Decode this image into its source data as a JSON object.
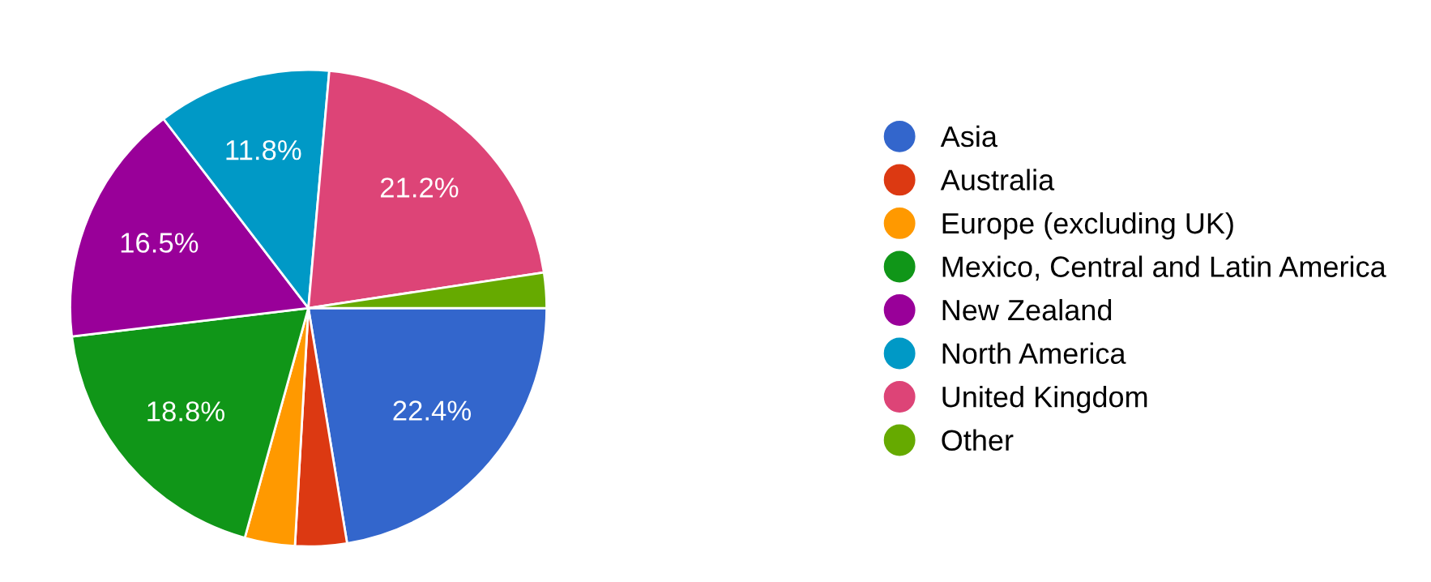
{
  "chart_data": {
    "type": "pie",
    "categories": [
      "Asia",
      "Australia",
      "Europe (excluding UK)",
      "Mexico, Central and Latin America",
      "New Zealand",
      "North America",
      "United Kingdom",
      "Other"
    ],
    "values": [
      22.4,
      3.5,
      3.4,
      18.8,
      16.5,
      11.8,
      21.2,
      2.4
    ],
    "value_labels": [
      "22.4%",
      null,
      null,
      "18.8%",
      "16.5%",
      "11.8%",
      "21.2%",
      null
    ],
    "colors": [
      "#3366cc",
      "#dc3912",
      "#ff9900",
      "#109618",
      "#990099",
      "#0099c6",
      "#dd4477",
      "#66aa00"
    ],
    "legend": "right"
  }
}
